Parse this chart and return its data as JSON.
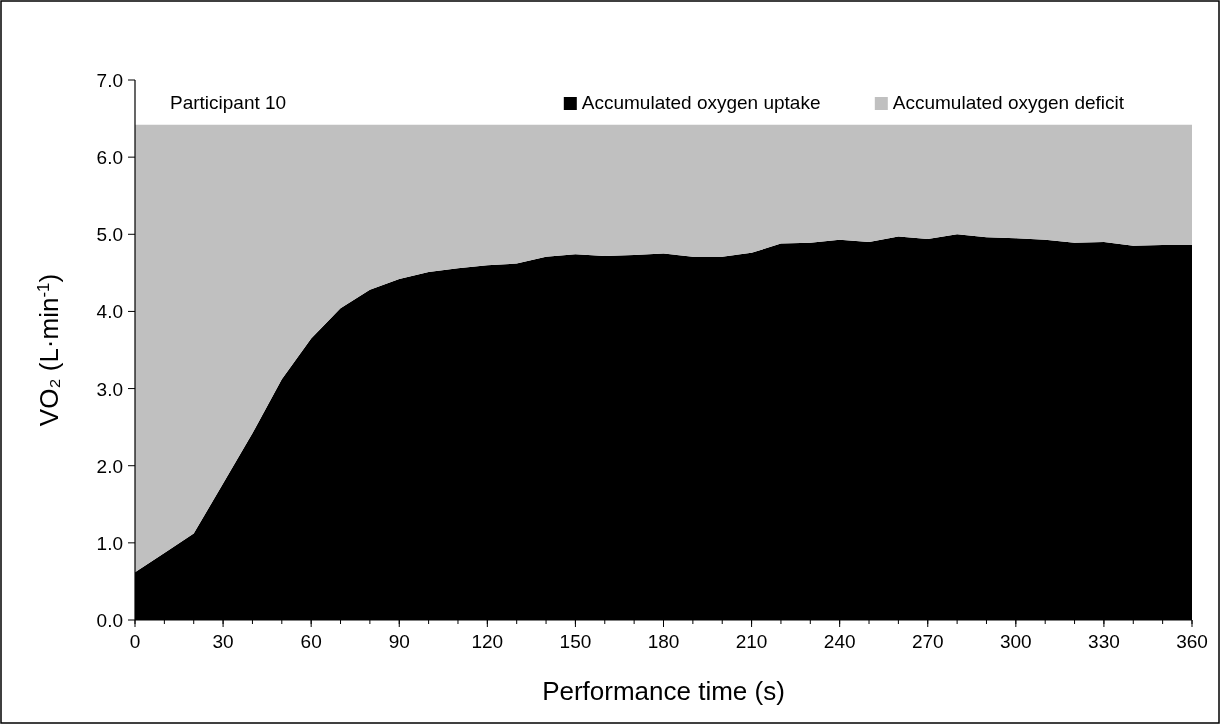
{
  "chart_data": {
    "type": "area",
    "stacked": true,
    "xlabel": "Performance time (s)",
    "ylabel": "VO₂ (L·min$^{-1}$)",
    "annotations": [
      "Participant 10"
    ],
    "x": [
      0,
      10,
      20,
      30,
      40,
      50,
      60,
      70,
      80,
      90,
      100,
      110,
      120,
      130,
      140,
      150,
      160,
      170,
      180,
      190,
      200,
      210,
      220,
      230,
      240,
      250,
      260,
      270,
      280,
      290,
      300,
      310,
      320,
      330,
      340,
      350,
      360
    ],
    "series": [
      {
        "name": "Accumulated oxygen uptake",
        "color": "#000000",
        "values": [
          0.62,
          0.87,
          1.12,
          1.77,
          2.42,
          3.12,
          3.65,
          4.04,
          4.28,
          4.42,
          4.51,
          4.56,
          4.6,
          4.62,
          4.71,
          4.74,
          4.72,
          4.73,
          4.75,
          4.71,
          4.71,
          4.76,
          4.88,
          4.89,
          4.93,
          4.9,
          4.97,
          4.94,
          5.0,
          4.96,
          4.95,
          4.93,
          4.89,
          4.9,
          4.85,
          4.86,
          4.86
        ]
      },
      {
        "name": "Accumulated oxygen deficit",
        "color": "#c0c0c0",
        "values": [
          5.8,
          5.55,
          5.3,
          4.65,
          4.0,
          3.3,
          2.77,
          2.38,
          2.14,
          2.0,
          1.91,
          1.86,
          1.82,
          1.8,
          1.71,
          1.68,
          1.7,
          1.69,
          1.67,
          1.71,
          1.71,
          1.66,
          1.54,
          1.53,
          1.49,
          1.52,
          1.45,
          1.48,
          1.42,
          1.46,
          1.47,
          1.49,
          1.53,
          1.52,
          1.57,
          1.56,
          1.56
        ]
      }
    ],
    "xlim": [
      0,
      360
    ],
    "xticks": [
      0,
      30,
      60,
      90,
      120,
      150,
      180,
      210,
      240,
      270,
      300,
      330,
      360
    ],
    "ylim": [
      0,
      7
    ],
    "yticks": [
      {
        "value": 0,
        "label": "0.0"
      },
      {
        "value": 1,
        "label": "1.0"
      },
      {
        "value": 2,
        "label": "2.0"
      },
      {
        "value": 3,
        "label": "3.0"
      },
      {
        "value": 4,
        "label": "4.0"
      },
      {
        "value": 5,
        "label": "5.0"
      },
      {
        "value": 6,
        "label": "6.0"
      },
      {
        "value": 7,
        "label": "7.0"
      }
    ],
    "grid": false,
    "legend": "top right"
  }
}
